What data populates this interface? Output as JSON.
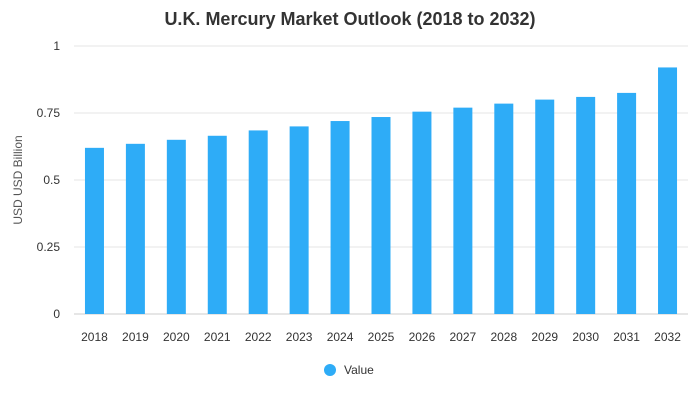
{
  "chart_data": {
    "type": "bar",
    "title": "U.K. Mercury Market Outlook (2018 to 2032)",
    "xlabel": "",
    "ylabel": "USD USD Billion",
    "categories": [
      "2018",
      "2019",
      "2020",
      "2021",
      "2022",
      "2023",
      "2024",
      "2025",
      "2026",
      "2027",
      "2028",
      "2029",
      "2030",
      "2031",
      "2032"
    ],
    "series": [
      {
        "name": "Value",
        "values": [
          0.62,
          0.635,
          0.65,
          0.665,
          0.685,
          0.7,
          0.72,
          0.735,
          0.755,
          0.77,
          0.785,
          0.8,
          0.81,
          0.825,
          0.92
        ],
        "color": "#2eacf7"
      }
    ],
    "ylim": [
      0,
      1
    ],
    "yticks": [
      "0",
      "0.25",
      "0.5",
      "0.75",
      "1"
    ],
    "ytick_values": [
      0,
      0.25,
      0.5,
      0.75,
      1
    ],
    "grid": true,
    "legend": "bottom-center"
  }
}
